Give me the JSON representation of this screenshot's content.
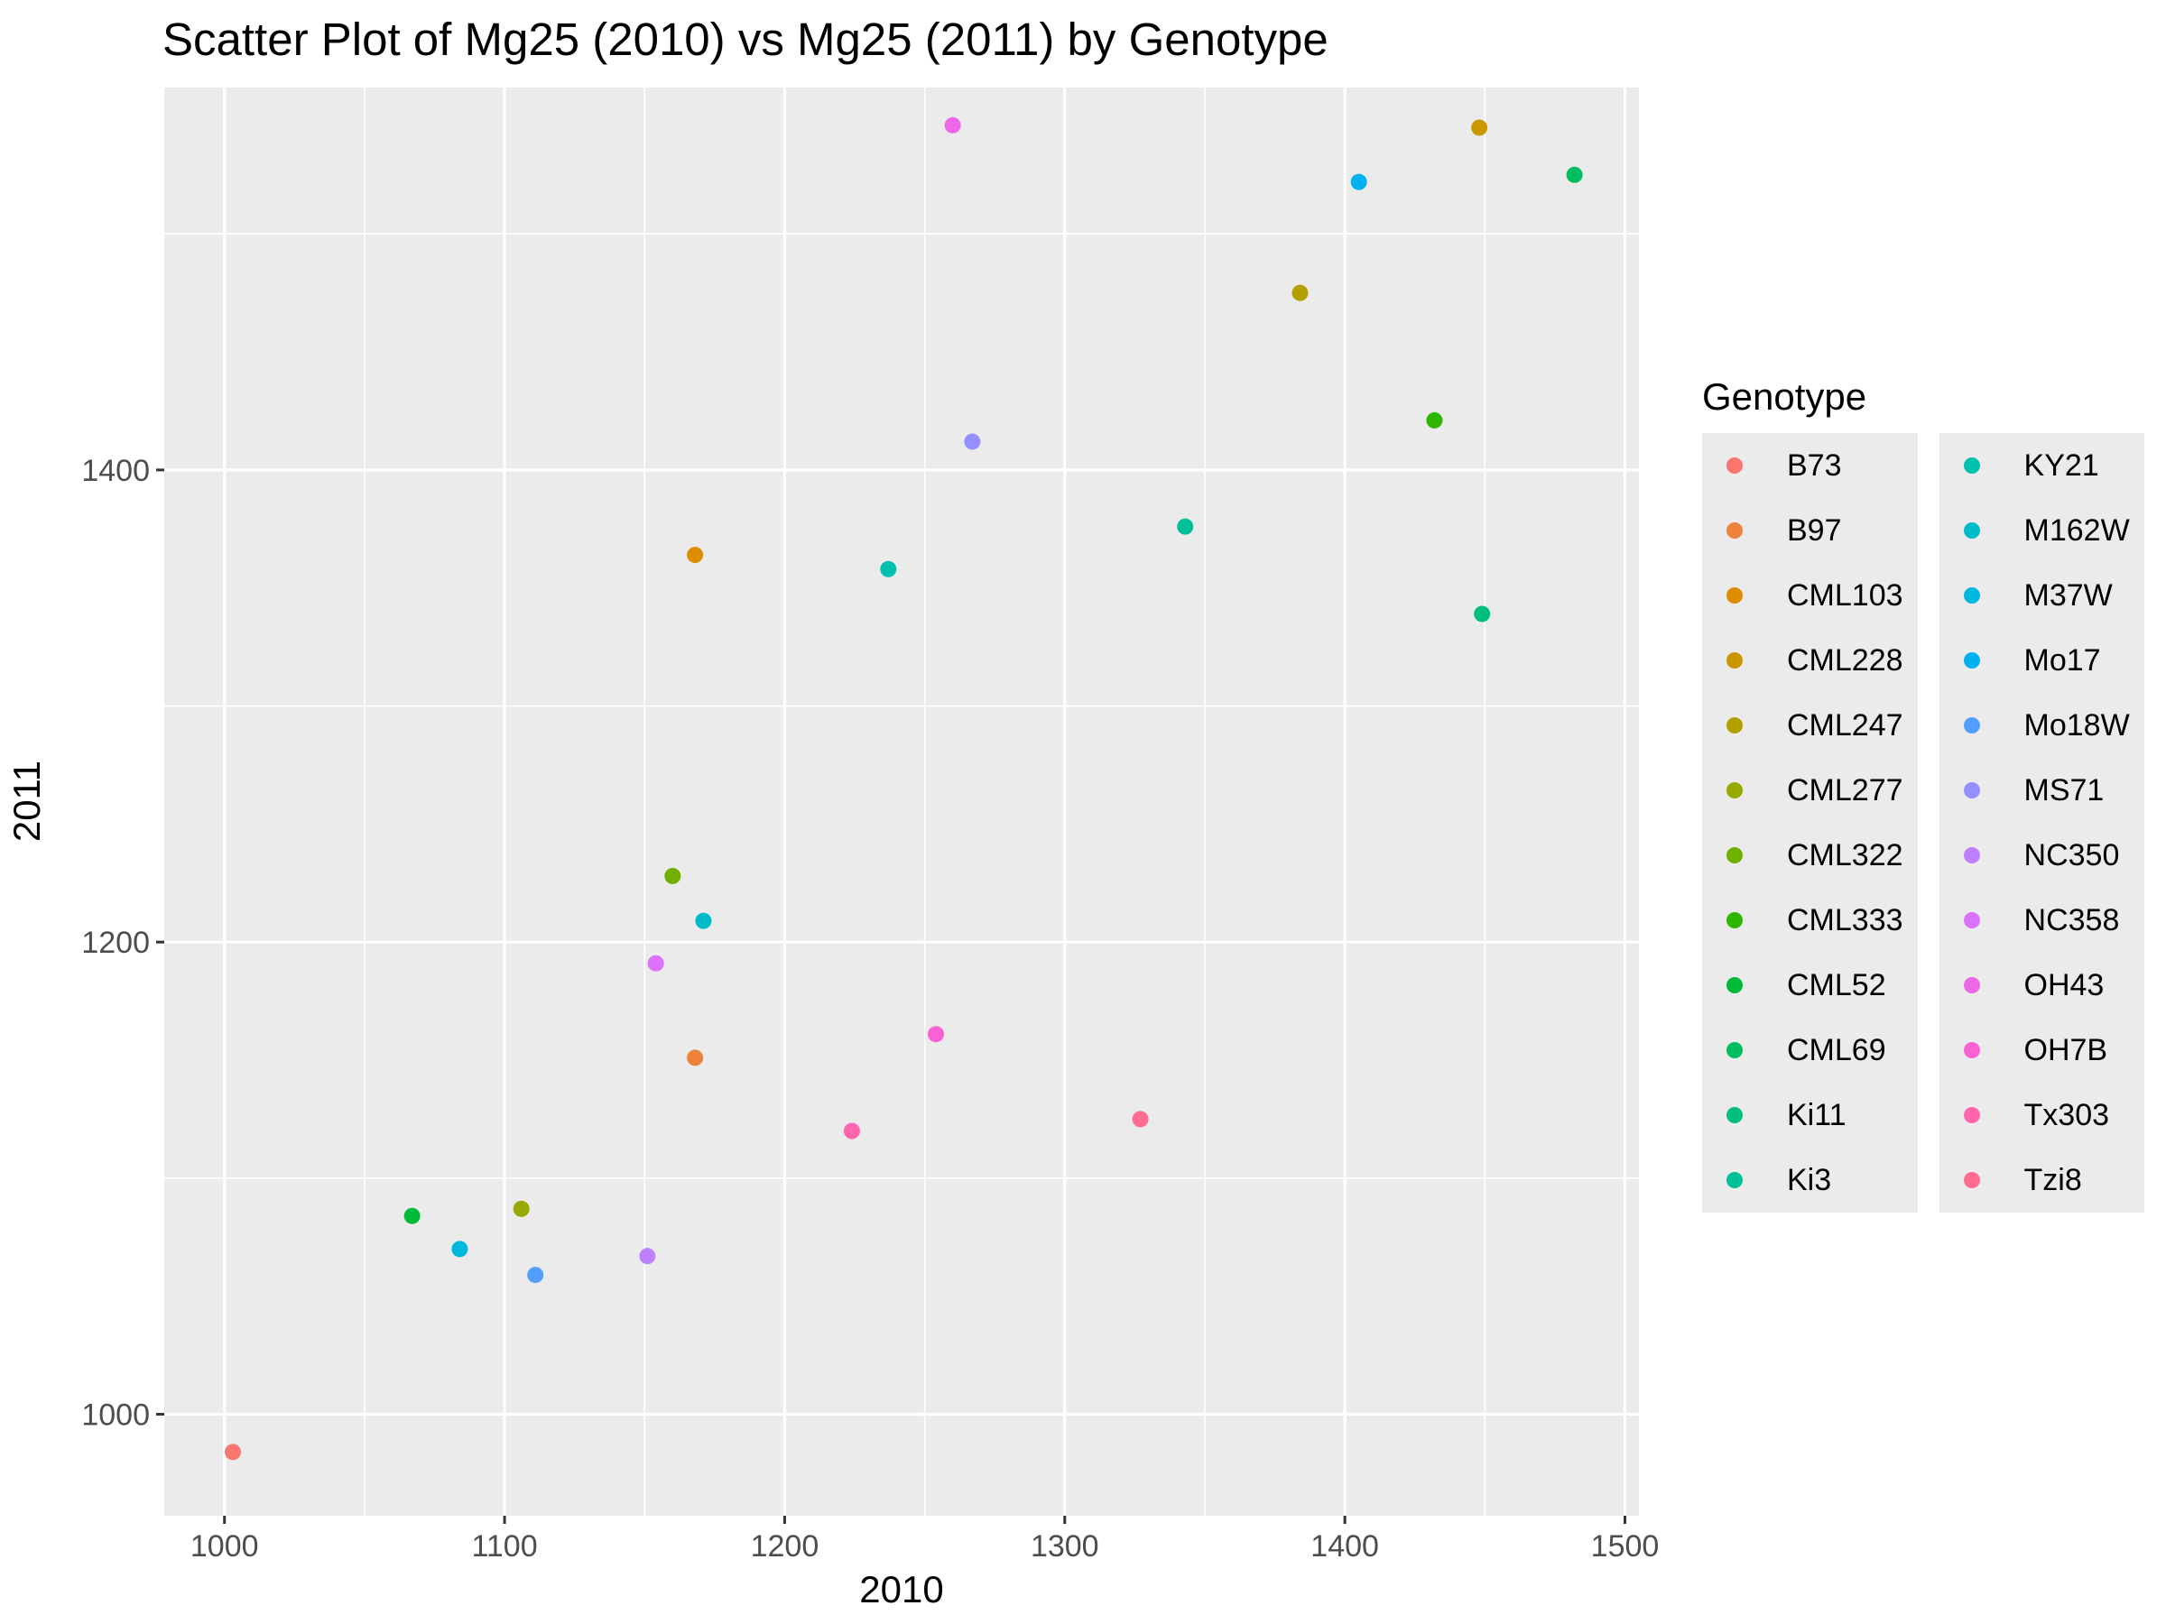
{
  "chart_data": {
    "type": "scatter",
    "title": "Scatter Plot of Mg25 (2010) vs Mg25 (2011) by Genotype",
    "xlabel": "2010",
    "ylabel": "2011",
    "xlim": [
      978.5,
      1505
    ],
    "ylim": [
      957,
      1562
    ],
    "xticks": [
      1000,
      1100,
      1200,
      1300,
      1400,
      1500
    ],
    "yticks": [
      1000,
      1200,
      1400
    ],
    "grid": true,
    "legend_title": "Genotype",
    "legend_position": "right",
    "series": [
      {
        "name": "B73",
        "color": "#F8766D",
        "x": 1003,
        "y": 984
      },
      {
        "name": "B97",
        "color": "#EC823C",
        "x": 1168,
        "y": 1151
      },
      {
        "name": "CML103",
        "color": "#DD8D00",
        "x": 1168,
        "y": 1364
      },
      {
        "name": "CML228",
        "color": "#CA9700",
        "x": 1448,
        "y": 1545
      },
      {
        "name": "CML247",
        "color": "#B3A000",
        "x": 1384,
        "y": 1475
      },
      {
        "name": "CML277",
        "color": "#97A900",
        "x": 1106,
        "y": 1087
      },
      {
        "name": "CML322",
        "color": "#71B000",
        "x": 1160,
        "y": 1228
      },
      {
        "name": "CML333",
        "color": "#2FB600",
        "x": 1432,
        "y": 1421
      },
      {
        "name": "CML52",
        "color": "#00BA38",
        "x": 1067,
        "y": 1084
      },
      {
        "name": "CML69",
        "color": "#00BD5F",
        "x": 1482,
        "y": 1525
      },
      {
        "name": "Ki11",
        "color": "#00BF7D",
        "x": 1449,
        "y": 1339
      },
      {
        "name": "Ki3",
        "color": "#00C097",
        "x": 1343,
        "y": 1376
      },
      {
        "name": "KY21",
        "color": "#00C0B0",
        "x": 1237,
        "y": 1358
      },
      {
        "name": "M162W",
        "color": "#00BCC8",
        "x": 1171,
        "y": 1209
      },
      {
        "name": "M37W",
        "color": "#00B8DE",
        "x": 1084,
        "y": 1070
      },
      {
        "name": "Mo17",
        "color": "#00B1F2",
        "x": 1405,
        "y": 1522
      },
      {
        "name": "Mo18W",
        "color": "#529EFF",
        "x": 1111,
        "y": 1059
      },
      {
        "name": "MS71",
        "color": "#9590FF",
        "x": 1267,
        "y": 1412
      },
      {
        "name": "NC350",
        "color": "#BD81FF",
        "x": 1151,
        "y": 1067
      },
      {
        "name": "NC358",
        "color": "#DB72FB",
        "x": 1154,
        "y": 1191
      },
      {
        "name": "OH43",
        "color": "#EE67E8",
        "x": 1260,
        "y": 1546
      },
      {
        "name": "OH7B",
        "color": "#FA62D4",
        "x": 1254,
        "y": 1161
      },
      {
        "name": "Tx303",
        "color": "#FF65AC",
        "x": 1224,
        "y": 1120
      },
      {
        "name": "Tzi8",
        "color": "#FF6C90",
        "x": 1327,
        "y": 1125
      }
    ]
  }
}
